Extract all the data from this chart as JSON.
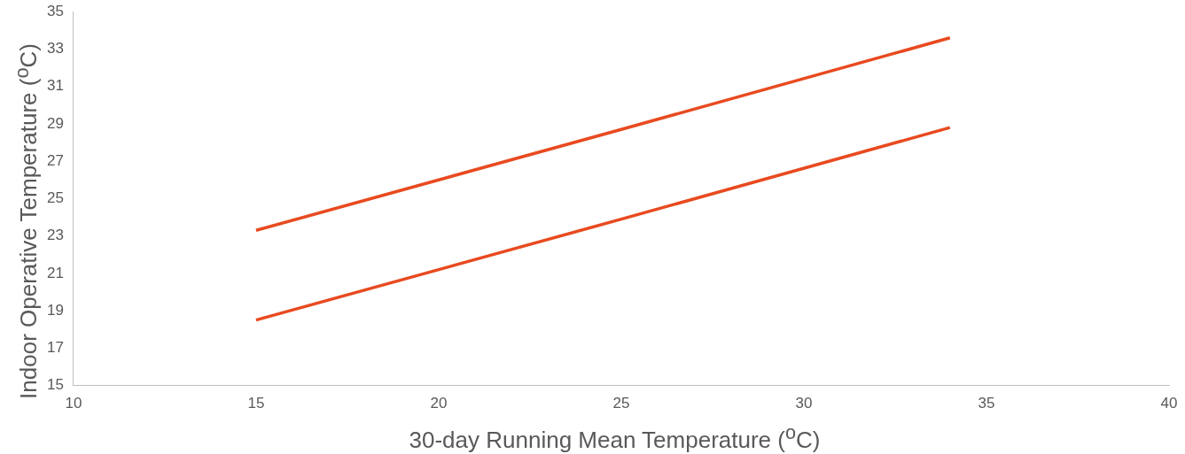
{
  "chart_data": {
    "type": "line",
    "xlabel": "30-day Running Mean Temperature ($^{o}$C)",
    "ylabel": "Indoor Operative Temperature ($^{o}$C)",
    "xlim": [
      10,
      40
    ],
    "xticks": [
      10,
      15,
      20,
      25,
      30,
      35,
      40
    ],
    "ylim": [
      15,
      35
    ],
    "yticks": [
      15,
      17,
      19,
      21,
      23,
      25,
      27,
      29,
      31,
      33,
      35
    ],
    "grid": false,
    "legend": false,
    "marker": "none",
    "line_style": "solid",
    "series": [
      {
        "color": "#e84a1f",
        "x": [
          15,
          25,
          34
        ],
        "values": [
          23.3,
          28.7,
          33.6
        ]
      },
      {
        "color": "#e84a1f",
        "x": [
          15,
          25,
          34
        ],
        "values": [
          18.5,
          23.9,
          28.8
        ]
      }
    ]
  }
}
